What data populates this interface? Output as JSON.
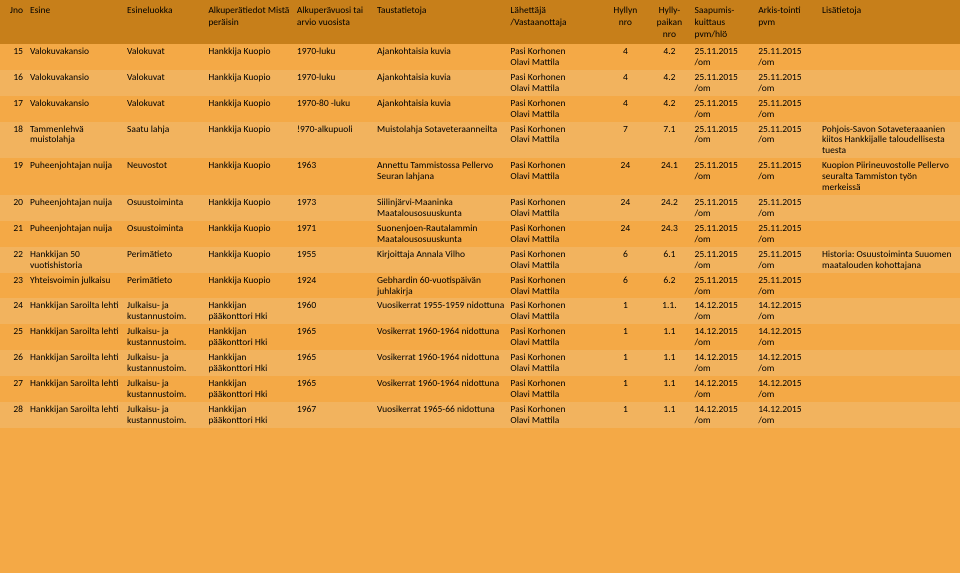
{
  "header": {
    "jno": "Jno",
    "esine": "Esine",
    "esineluokka": "Esineluokka",
    "alkuperatiedot": "Alkuperätiedot\nMistä peräisin",
    "alkuperavuosi": "Alkuperävuosi tai arvio vuosista",
    "taustatietoja": "Taustatietoja",
    "lahettaja": "Lähettäjä\n/Vastaanottaja",
    "hyllyn": "Hyllyn nro",
    "paikan": "Hylly-\npaikan nro",
    "saapumis": "Saapumis-\nkuittaus pvm/hlö",
    "arkistointi": "Arkis-tointi pvm",
    "lisatietoja": "Lisätietoja"
  },
  "constants": {
    "pasi": "Pasi Korhonen",
    "olavi": "Olavi Mattila",
    "d25": "25.11.2015",
    "d14": "14.12.2015",
    "om": "/om",
    "hk": "Hankkija Kuopio",
    "hankkijan": "Hankkijan",
    "paakonttori": "pääkonttori Hki",
    "julkaisu": "Julkaisu- ja",
    "kustantamo": "kustannustoim.",
    "hsaroilta": "Hankkijan Saroilta",
    "lehti": "lehti"
  },
  "rows": [
    {
      "n": "15",
      "esine": "Valokuvakansio",
      "luokka": "Valokuvat",
      "alku": "Hankkija Kuopio",
      "vuosi": "1970-luku",
      "tausta": "Ajankohtaisia kuvia",
      "h": "4",
      "p": "4.2",
      "d": "25",
      "lisa": ""
    },
    {
      "n": "16",
      "esine": "Valokuvakansio",
      "luokka": "Valokuvat",
      "alku": "Hankkija Kuopio",
      "vuosi": "1970-luku",
      "tausta": "Ajankohtaisia kuvia",
      "h": "4",
      "p": "4.2",
      "d": "25",
      "lisa": ""
    },
    {
      "n": "17",
      "esine": "Valokuvakansio",
      "luokka": "Valokuvat",
      "alku": "Hankkija Kuopio",
      "vuosi": "1970-80 -luku",
      "tausta": "Ajankohtaisia kuvia",
      "h": "4",
      "p": "4.2",
      "d": "25",
      "lisa": ""
    },
    {
      "n": "18",
      "esine": "Tammenlehvä muistolahja",
      "luokka": "Saatu lahja",
      "alku": "Hankkija Kuopio",
      "vuosi": "!970-alkupuoli",
      "tausta": "Muistolahja Sotaveteraanneilta",
      "h": "7",
      "p": "7.1",
      "d": "25",
      "lisa": "Pohjois-Savon Sotaveteraaanien kiitos Hankkijalle taloudellisesta tuesta"
    },
    {
      "n": "19",
      "esine": "Puheenjohtajan nuija",
      "luokka": "Neuvostot",
      "alku": "Hankkija Kuopio",
      "vuosi": "1963",
      "tausta": "Annettu Tammistossa Pellervo Seuran lahjana",
      "h": "24",
      "p": "24.1",
      "d": "25",
      "lisa": "Kuopion Piirineuvostolle Pellervo seuralta Tammiston työn merkeissä"
    },
    {
      "n": "20",
      "esine": "Puheenjohtajan nuija",
      "luokka": "Osuustoiminta",
      "alku": "Hankkija Kuopio",
      "vuosi": "1973",
      "tausta": "Siilinjärvi-Maaninka Maatalousosuuskunta",
      "h": "24",
      "p": "24.2",
      "d": "25",
      "lisa": ""
    },
    {
      "n": "21",
      "esine": "Puheenjohtajan nuija",
      "luokka": "Osuustoiminta",
      "alku": "Hankkija Kuopio",
      "vuosi": "1971",
      "tausta": "Suonenjoen-Rautalammin Maatalousosuuskunta",
      "h": "24",
      "p": "24.3",
      "d": "25",
      "lisa": ""
    },
    {
      "n": "22",
      "esine": "Hankkijan 50 vuotishistoria",
      "luokka": "Perimätieto",
      "alku": "Hankkija Kuopio",
      "vuosi": "1955",
      "tausta": "Kirjoittaja Annala Vilho",
      "h": "6",
      "p": "6.1",
      "d": "25",
      "lisa": "Historia: Osuustoiminta Suuomen maatalouden kohottajana"
    },
    {
      "n": "23",
      "esine": "Yhteisvoimin julkaisu",
      "luokka": "Perimätieto",
      "alku": "Hankkija Kuopio",
      "vuosi": "1924",
      "tausta": "Gebhardin 60-vuotispäivän juhlakirja",
      "h": "6",
      "p": "6.2",
      "d": "25",
      "lisa": ""
    },
    {
      "n": "24",
      "esine": "Hankkijan Saroilta lehti",
      "luokka": "Julkaisu- ja kustannustoim.",
      "alku": "Hankkijan pääkonttori Hki",
      "vuosi": "1960",
      "tausta": "Vuosikerrat 1955-1959 nidottuna",
      "h": "1",
      "p": "1.1.",
      "d": "14",
      "lisa": ""
    },
    {
      "n": "25",
      "esine": "Hankkijan Saroilta lehti",
      "luokka": "Julkaisu- ja kustannustoim.",
      "alku": "Hankkijan pääkonttori Hki",
      "vuosi": "1965",
      "tausta": "Vosikerrat 1960-1964 nidottuna",
      "h": "1",
      "p": "1.1",
      "d": "14",
      "lisa": ""
    },
    {
      "n": "26",
      "esine": "Hankkijan Saroilta lehti",
      "luokka": "Julkaisu- ja kustannustoim.",
      "alku": "Hankkijan pääkonttori Hki",
      "vuosi": "1965",
      "tausta": "Vosikerrat 1960-1964 nidottuna",
      "h": "1",
      "p": "1.1",
      "d": "14",
      "lisa": ""
    },
    {
      "n": "27",
      "esine": "Hankkijan Saroilta lehti",
      "luokka": "Julkaisu- ja kustannustoim.",
      "alku": "Hankkijan pääkonttori Hki",
      "vuosi": "1965",
      "tausta": "Vosikerrat 1960-1964 nidottuna",
      "h": "1",
      "p": "1.1",
      "d": "14",
      "lisa": ""
    },
    {
      "n": "28",
      "esine": "Hankkijan Saroilta lehti",
      "luokka": "Julkaisu- ja kustannustoim.",
      "alku": "Hankkijan pääkonttori Hki",
      "vuosi": "1967",
      "tausta": "Vuosikerrat 1965-66 nidottuna",
      "h": "1",
      "p": "1.1",
      "d": "14",
      "lisa": ""
    }
  ]
}
